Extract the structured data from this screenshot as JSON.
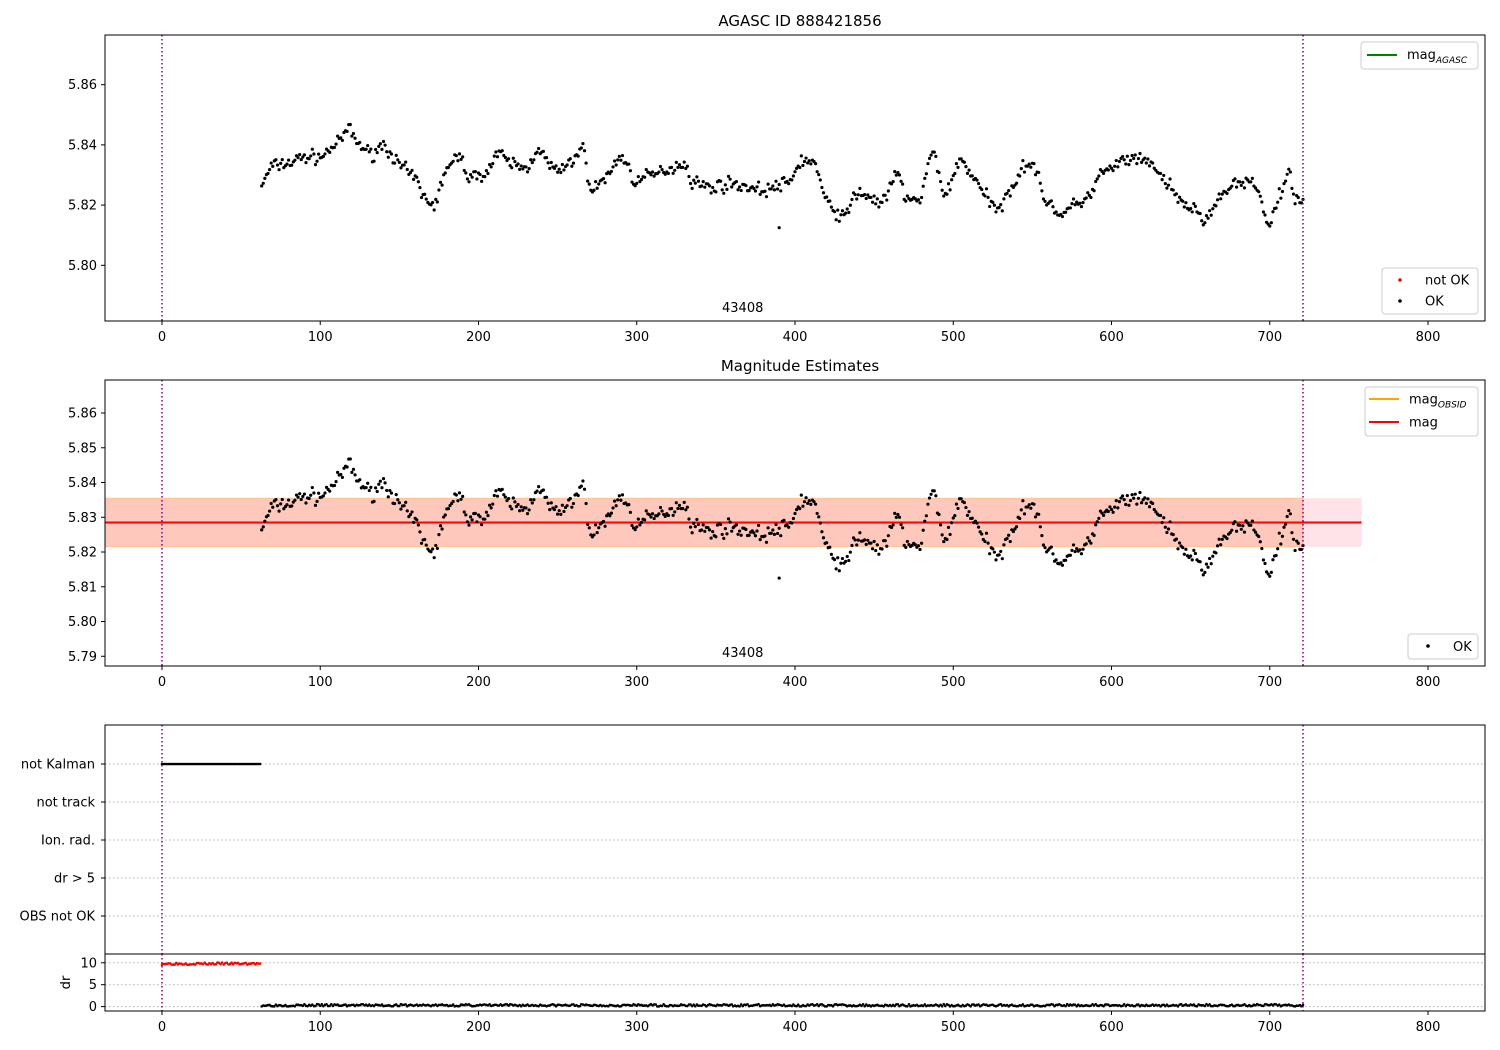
{
  "figure": {
    "background": "#ffffff"
  },
  "chart_data": [
    {
      "type": "scatter",
      "title": "AGASC ID 888421856",
      "xlim": [
        -36,
        836
      ],
      "ylim": [
        5.7815,
        5.8765
      ],
      "x_ticks": [
        0,
        100,
        200,
        300,
        400,
        500,
        600,
        700,
        800
      ],
      "y_ticks": [
        5.8,
        5.82,
        5.84,
        5.86
      ],
      "y_tick_labels": [
        "5.80",
        "5.82",
        "5.84",
        "5.86"
      ],
      "vlines": [
        0,
        721
      ],
      "vline_color": "#800080",
      "annotation": {
        "text": "43408",
        "x": 360
      },
      "legend_lines": [
        {
          "label": "mag",
          "sub": "AGASC",
          "color": "#008000"
        }
      ],
      "legend_points": [
        {
          "label": "not OK",
          "color": "#ff0000"
        },
        {
          "label": "OK",
          "color": "#000000"
        }
      ],
      "series": {
        "x_start": 63,
        "x_end": 721,
        "knots": [
          [
            63,
            5.827
          ],
          [
            70,
            5.833
          ],
          [
            80,
            5.834
          ],
          [
            90,
            5.836
          ],
          [
            100,
            5.836
          ],
          [
            110,
            5.84
          ],
          [
            118,
            5.845
          ],
          [
            125,
            5.84
          ],
          [
            132,
            5.837
          ],
          [
            140,
            5.84
          ],
          [
            145,
            5.837
          ],
          [
            150,
            5.833
          ],
          [
            160,
            5.829
          ],
          [
            165,
            5.823
          ],
          [
            172,
            5.82
          ],
          [
            180,
            5.832
          ],
          [
            188,
            5.836
          ],
          [
            195,
            5.829
          ],
          [
            205,
            5.831
          ],
          [
            212,
            5.837
          ],
          [
            220,
            5.834
          ],
          [
            230,
            5.832
          ],
          [
            238,
            5.839
          ],
          [
            245,
            5.833
          ],
          [
            252,
            5.831
          ],
          [
            258,
            5.834
          ],
          [
            265,
            5.839
          ],
          [
            272,
            5.825
          ],
          [
            280,
            5.829
          ],
          [
            290,
            5.836
          ],
          [
            300,
            5.828
          ],
          [
            310,
            5.83
          ],
          [
            320,
            5.832
          ],
          [
            330,
            5.834
          ],
          [
            335,
            5.828
          ],
          [
            345,
            5.826
          ],
          [
            360,
            5.827
          ],
          [
            380,
            5.825
          ],
          [
            395,
            5.827
          ],
          [
            405,
            5.835
          ],
          [
            412,
            5.834
          ],
          [
            420,
            5.821
          ],
          [
            430,
            5.816
          ],
          [
            440,
            5.824
          ],
          [
            455,
            5.821
          ],
          [
            465,
            5.83
          ],
          [
            470,
            5.823
          ],
          [
            478,
            5.821
          ],
          [
            487,
            5.837
          ],
          [
            495,
            5.824
          ],
          [
            505,
            5.835
          ],
          [
            512,
            5.83
          ],
          [
            520,
            5.823
          ],
          [
            528,
            5.818
          ],
          [
            535,
            5.825
          ],
          [
            545,
            5.833
          ],
          [
            550,
            5.834
          ],
          [
            558,
            5.822
          ],
          [
            568,
            5.817
          ],
          [
            578,
            5.82
          ],
          [
            585,
            5.823
          ],
          [
            595,
            5.831
          ],
          [
            610,
            5.835
          ],
          [
            625,
            5.834
          ],
          [
            635,
            5.827
          ],
          [
            642,
            5.822
          ],
          [
            650,
            5.819
          ],
          [
            660,
            5.815
          ],
          [
            668,
            5.823
          ],
          [
            680,
            5.827
          ],
          [
            690,
            5.827
          ],
          [
            700,
            5.814
          ],
          [
            707,
            5.824
          ],
          [
            712,
            5.831
          ],
          [
            716,
            5.821
          ],
          [
            721,
            5.822
          ]
        ],
        "outliers": [
          [
            390,
            5.8125
          ]
        ],
        "color": "#000000"
      }
    },
    {
      "type": "scatter",
      "title": "Magnitude Estimates",
      "xlim": [
        -36,
        836
      ],
      "ylim": [
        5.7872,
        5.8695
      ],
      "x_ticks": [
        0,
        100,
        200,
        300,
        400,
        500,
        600,
        700,
        800
      ],
      "y_ticks": [
        5.79,
        5.8,
        5.81,
        5.82,
        5.83,
        5.84,
        5.85,
        5.86
      ],
      "y_tick_labels": [
        "5.79",
        "5.80",
        "5.81",
        "5.82",
        "5.83",
        "5.84",
        "5.85",
        "5.86"
      ],
      "vlines": [
        0,
        721
      ],
      "vline_color": "#800080",
      "annotation": {
        "text": "43408",
        "x": 360
      },
      "mag_line": {
        "value": 5.8285,
        "x_range": [
          -36,
          758
        ],
        "color": "#ff0000"
      },
      "mag_band": {
        "low": 5.8215,
        "high": 5.8355,
        "x_range": [
          -36,
          758
        ],
        "color": "#ffc0cb"
      },
      "obsid_band": {
        "low": 5.8215,
        "high": 5.8355,
        "x_range": [
          -36,
          721
        ],
        "color": "#ffa07a"
      },
      "legend_lines": [
        {
          "label": "mag",
          "sub": "OBSID",
          "color": "#ffa500"
        },
        {
          "label": "mag",
          "sub": "",
          "color": "#ff0000"
        }
      ],
      "legend_points": [
        {
          "label": "OK",
          "color": "#000000"
        }
      ]
    },
    {
      "type": "scatter",
      "title": "",
      "xlim": [
        -36,
        836
      ],
      "x_ticks": [
        0,
        100,
        200,
        300,
        400,
        500,
        600,
        700,
        800
      ],
      "vlines": [
        0,
        721
      ],
      "vline_color": "#800080",
      "flag_categories": [
        "not Kalman",
        "not track",
        "Ion. rad.",
        "dr > 5",
        "OBS not OK"
      ],
      "flags": [
        {
          "category": "not Kalman",
          "x_range": [
            0,
            62
          ],
          "color": "#000000"
        }
      ]
    },
    {
      "type": "scatter",
      "title": "",
      "ylabel": "dr",
      "xlim": [
        -36,
        836
      ],
      "ylim": [
        -1,
        12
      ],
      "x_ticks": [
        0,
        100,
        200,
        300,
        400,
        500,
        600,
        700,
        800
      ],
      "y_ticks": [
        0,
        5,
        10
      ],
      "y_tick_labels": [
        "0",
        "5",
        "10"
      ],
      "vlines": [
        0,
        721
      ],
      "vline_color": "#800080",
      "series": [
        {
          "name": "",
          "x_range": [
            0,
            62
          ],
          "value": 9.8,
          "color": "#ff0000"
        },
        {
          "name": "",
          "x_range": [
            63,
            721
          ],
          "value": 0.3,
          "color": "#000000"
        }
      ]
    }
  ]
}
